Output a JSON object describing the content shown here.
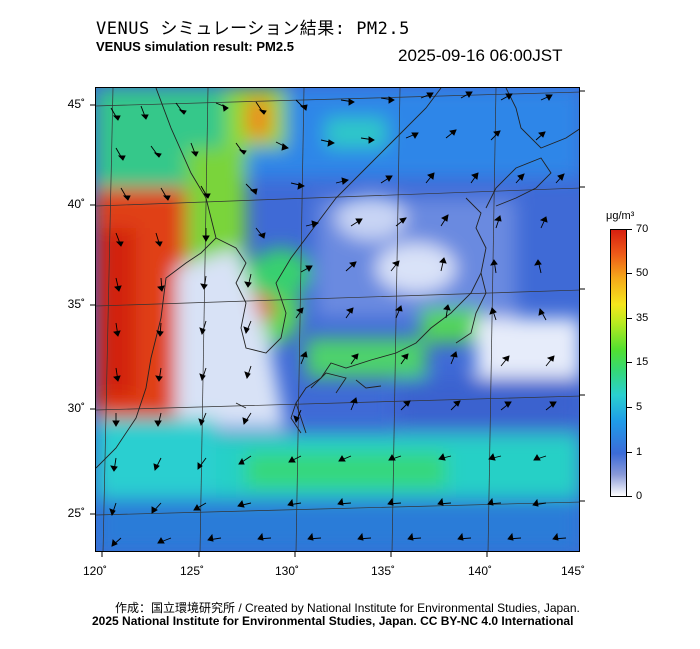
{
  "title_jp": "VENUS シミュレーション結果: PM2.5",
  "title_en": "VENUS simulation result: PM2.5",
  "timestamp": "2025-09-16 06:00JST",
  "lat_labels": [
    "45˚",
    "40˚",
    "35˚",
    "30˚",
    "25˚"
  ],
  "lon_labels": [
    "120˚",
    "125˚",
    "130˚",
    "135˚",
    "140˚",
    "145˚"
  ],
  "colorbar": {
    "unit": "μg/m³",
    "labels": [
      "70",
      "50",
      "35",
      "15",
      "5",
      "1",
      "0"
    ],
    "colors": [
      "#ffffff",
      "#8a9ad8",
      "#3c6bd8",
      "#1f9be8",
      "#2ad0cf",
      "#34d878",
      "#52e030",
      "#b8ea20",
      "#f5e61c",
      "#f5a81a",
      "#ee5a18",
      "#d62010"
    ]
  },
  "credit": "作成：国立環境研究所 / Created by National Institute for Environmental Studies, Japan.",
  "license": "2025 National Institute for Environmental Studies, Japan. CC BY-NC 4.0 International"
}
